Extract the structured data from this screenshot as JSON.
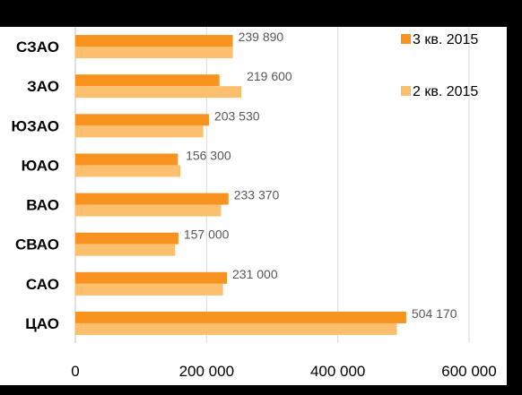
{
  "chart_data": {
    "type": "bar",
    "orientation": "horizontal",
    "title": "",
    "xlabel": "",
    "ylabel": "",
    "categories": [
      "ЦАО",
      "САО",
      "СВАО",
      "ВАО",
      "ЮАО",
      "ЮЗАО",
      "ЗАО",
      "СЗАО"
    ],
    "series": [
      {
        "name": "3 кв. 2015",
        "color": "#f7931e",
        "values": [
          504170,
          231000,
          157000,
          233370,
          156300,
          203530,
          219600,
          239890
        ],
        "data_labels": [
          "504 170",
          "231 000",
          "157 000",
          "233 370",
          "156 300",
          "203 530",
          "219 600",
          "239 890"
        ]
      },
      {
        "name": "2 кв. 2015",
        "color": "#fbbf6e",
        "values": [
          490000,
          225000,
          152000,
          222000,
          160000,
          195000,
          253000,
          240000
        ]
      }
    ],
    "xlim": [
      0,
      600000
    ],
    "xticks": [
      0,
      200000,
      400000,
      600000
    ],
    "xtick_labels": [
      "0",
      "200 000",
      "400 000",
      "600 000"
    ],
    "grid": true,
    "legend_position": "right"
  }
}
